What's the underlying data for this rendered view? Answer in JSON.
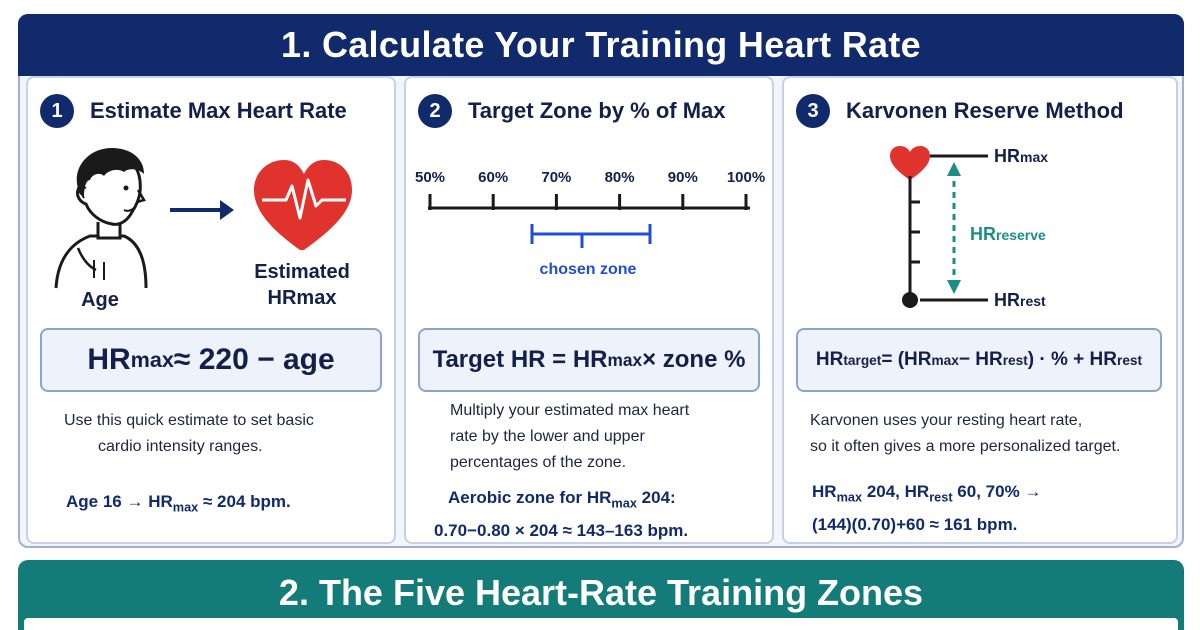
{
  "header": {
    "title": "1. Calculate Your Training Heart Rate"
  },
  "panels": [
    {
      "number": "1",
      "title": "Estimate Max Heart Rate",
      "age_label": "Age",
      "result_line1": "Estimated",
      "result_line2": "HRmax",
      "formula": {
        "hr": "HR",
        "sub": "max",
        "rest": " ≈ 220 − age"
      },
      "description_line1": "Use this quick estimate to set basic",
      "description_line2": "cardio intensity ranges.",
      "example": {
        "pre": "Age 16 → HR",
        "sub": "max",
        "post": " ≈ 204 bpm."
      }
    },
    {
      "number": "2",
      "title": "Target Zone by % of Max",
      "scale_ticks": [
        "50%",
        "60%",
        "70%",
        "80%",
        "90%",
        "100%"
      ],
      "zone_label": "chosen zone",
      "formula": {
        "pre": "Target HR = HR",
        "sub": "max",
        "post": " × zone %"
      },
      "description_line1": "Multiply your estimated max heart",
      "description_line2": "rate by the lower and upper",
      "description_line3": "percentages of the zone.",
      "example": {
        "pre": "Aerobic zone for HR",
        "sub": "max",
        "post": " 204:",
        "line2": "0.70−0.80 × 204 ≈ 143–163 bpm."
      }
    },
    {
      "number": "3",
      "title": "Karvonen Reserve Method",
      "labels": {
        "hr": "HR",
        "max": "max",
        "reserve": "reserve",
        "rest": "rest"
      },
      "formula": {
        "hr1": "HR",
        "sub1": "target",
        "mid1": " = (HR",
        "sub2": "max",
        "mid2": " − HR",
        "sub3": "rest",
        "mid3": ") · % + HR",
        "sub4": "rest"
      },
      "description_line1": "Karvonen uses your resting heart rate,",
      "description_line2": "so it often gives a more personalized target.",
      "example": {
        "a": "HR",
        "a_sub": "max",
        "b": " 204, HR",
        "b_sub": "rest",
        "c": " 60, 70% →",
        "line2": "(144)(0.70)+60 ≈ 161 bpm."
      }
    }
  ],
  "section2": {
    "title": "2. The Five Heart-Rate Training Zones"
  },
  "colors": {
    "navy": "#102a6b",
    "teal": "#137c78",
    "heart": "#e0332e",
    "zone_blue": "#1f4fd0",
    "reserve_teal": "#1a8f86"
  },
  "icons": [
    "person-icon",
    "heart-pulse-icon",
    "arrow-right-icon",
    "heart-icon"
  ]
}
